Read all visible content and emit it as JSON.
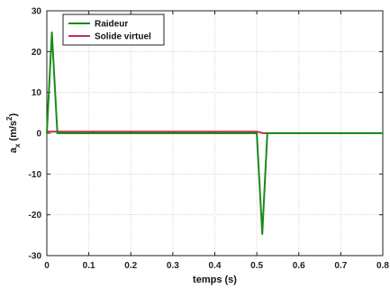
{
  "chart_data": {
    "type": "line",
    "xlabel": "temps (s)",
    "ylabel_base": "a",
    "ylabel_sub": "x",
    "ylabel_unit_pre": "(m/s",
    "ylabel_unit_sup": "2",
    "ylabel_unit_post": ")",
    "xlim": [
      0,
      0.8
    ],
    "ylim": [
      -30,
      30
    ],
    "xticks": [
      0,
      0.1,
      0.2,
      0.3,
      0.4,
      0.5,
      0.6,
      0.7,
      0.8
    ],
    "xtick_labels": [
      "0",
      "0.1",
      "0.2",
      "0.3",
      "0.4",
      "0.5",
      "0.6",
      "0.7",
      "0.8"
    ],
    "yticks": [
      30,
      20,
      10,
      0,
      -10,
      -20,
      -30
    ],
    "ytick_labels": [
      "30",
      "20",
      "10",
      "0",
      "-10",
      "-20",
      "-30"
    ],
    "grid": true,
    "legend_position": "top-left",
    "series": [
      {
        "name": "Raideur",
        "color": "#1a8a1a",
        "x": [
          0,
          0.012,
          0.025,
          0.5,
          0.513,
          0.525,
          0.8
        ],
        "y": [
          0,
          24.7,
          0,
          0,
          -24.7,
          0,
          0
        ]
      },
      {
        "name": "Solide virtuel",
        "color": "#c0344d",
        "x": [
          0,
          0.5,
          0.515,
          0.8
        ],
        "y": [
          0.4,
          0.4,
          0,
          0
        ]
      }
    ]
  }
}
